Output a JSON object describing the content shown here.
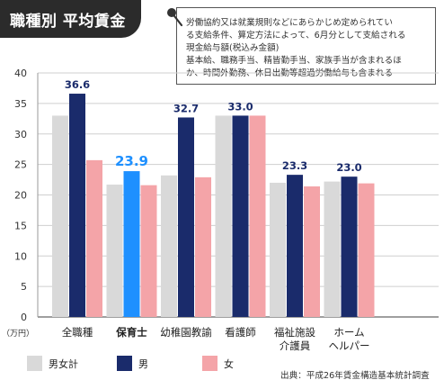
{
  "header": {
    "title": "職種別 平均賃金"
  },
  "note": {
    "lines": [
      "労働協約又は就業規則などにあらかじめ定められてい",
      "る支給条件、算定方法によって、6月分として支給される",
      "現金給与額(税込み金額)",
      "基本給、職務手当、精皆勤手当、家族手当が含まれるほ",
      "か、時間外勤務、休日出勤等超過労働給与も含まれる"
    ]
  },
  "source": "出典：平成26年賃金構造基本統計調査",
  "colors": {
    "total": "#d9d9d9",
    "male": "#1a2b6b",
    "female": "#f4a4a8",
    "highlight_male": "#1e90ff",
    "highlight_label": "#1e90ff",
    "dark_label": "#1a2b6b",
    "title_bg": "#2b2b2b"
  },
  "chart_data": {
    "type": "bar",
    "categories": [
      "全職種",
      "保育士",
      "幼稚園教諭",
      "看護師",
      "福祉施設介護員",
      "ホームヘルパー"
    ],
    "category_lines": [
      [
        "全職種"
      ],
      [
        "保育士"
      ],
      [
        "幼稚園教諭"
      ],
      [
        "看護師"
      ],
      [
        "福祉施設",
        "介護員"
      ],
      [
        "ホーム",
        "ヘルパー"
      ]
    ],
    "highlight_category": "保育士",
    "series": [
      {
        "name": "男女計",
        "values": [
          33.0,
          21.7,
          23.2,
          33.0,
          22.0,
          22.2
        ]
      },
      {
        "name": "男",
        "values": [
          36.6,
          23.9,
          32.7,
          33.0,
          23.3,
          23.0
        ]
      },
      {
        "name": "女",
        "values": [
          25.7,
          21.6,
          22.9,
          33.0,
          21.4,
          21.9
        ]
      }
    ],
    "value_labels": [
      "36.6",
      "23.9",
      "32.7",
      "33.0",
      "23.3",
      "23.0"
    ],
    "yticks": [
      0,
      5,
      10,
      15,
      20,
      25,
      30,
      35,
      40
    ],
    "ylim": [
      0,
      40
    ],
    "yunit": "（万円）",
    "grid": true,
    "legend": "bottom-left"
  }
}
